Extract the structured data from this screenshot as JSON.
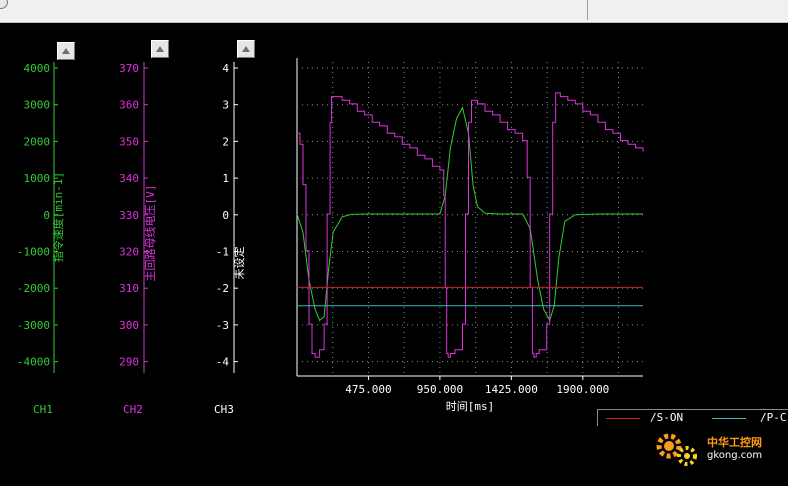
{
  "window": {
    "top_bar": ""
  },
  "axes": {
    "ch1": {
      "label": "指令速度[min-1]",
      "ticks": [
        "4000",
        "3000",
        "2000",
        "1000",
        "0",
        "-1000",
        "-2000",
        "-3000",
        "-4000"
      ],
      "color": "#33cc33",
      "channel": "CH1"
    },
    "ch2": {
      "label": "主回路母线电压[V]",
      "ticks": [
        "370",
        "360",
        "350",
        "340",
        "330",
        "320",
        "310",
        "300",
        "290"
      ],
      "color": "#dd33dd",
      "channel": "CH2"
    },
    "ch3": {
      "label": "未设定",
      "ticks": [
        "4",
        "3",
        "2",
        "1",
        "0",
        "-1",
        "-2",
        "-3",
        "-4"
      ],
      "color": "#ffffff",
      "channel": "CH3"
    }
  },
  "plot": {
    "xlabel": "时间[ms]",
    "xticks": [
      "475.000",
      "950.000",
      "1425.000",
      "1900.000"
    ]
  },
  "legend": {
    "items": [
      {
        "label": "/S-ON",
        "color": "#cc2222"
      },
      {
        "label": "/P-C",
        "color": "#33bbbb"
      }
    ]
  },
  "watermark": {
    "line1": "中华工控网",
    "line2": "gkong.com"
  },
  "chart_data": {
    "type": "line",
    "xlabel": "时间[ms]",
    "xlim": [
      0,
      2300
    ],
    "series": [
      {
        "name": "指令速度[min-1]",
        "color": "#33cc33",
        "x": [
          0,
          40,
          80,
          120,
          150,
          180,
          210,
          240,
          300,
          360,
          450,
          600,
          800,
          950,
          985,
          1020,
          1060,
          1100,
          1140,
          1170,
          1200,
          1250,
          1350,
          1500,
          1550,
          1600,
          1640,
          1680,
          1710,
          1740,
          1780,
          1850,
          2000,
          2300
        ],
        "y": [
          0,
          -500,
          -1800,
          -2600,
          -2900,
          -2800,
          -1500,
          -500,
          -80,
          -10,
          0,
          0,
          0,
          0,
          500,
          1800,
          2600,
          2900,
          2200,
          800,
          200,
          20,
          0,
          0,
          -400,
          -1800,
          -2600,
          -2900,
          -2500,
          -1200,
          -200,
          -20,
          0,
          0
        ]
      },
      {
        "name": "主回路母线电压[V]",
        "color": "#dd33dd",
        "x": [
          0,
          20,
          40,
          60,
          80,
          100,
          120,
          150,
          180,
          200,
          220,
          230,
          260,
          300,
          350,
          400,
          450,
          500,
          550,
          600,
          650,
          700,
          750,
          800,
          850,
          900,
          950,
          975,
          985,
          995,
          1005,
          1020,
          1050,
          1080,
          1100,
          1120,
          1140,
          1160,
          1180,
          1200,
          1250,
          1300,
          1350,
          1400,
          1450,
          1500,
          1530,
          1550,
          1565,
          1575,
          1590,
          1610,
          1640,
          1660,
          1680,
          1700,
          1720,
          1750,
          1800,
          1850,
          1900,
          1950,
          2000,
          2050,
          2100,
          2150,
          2200,
          2250,
          2300
        ],
        "y": [
          352,
          349,
          338,
          320,
          300,
          292,
          291,
          293,
          300,
          330,
          355,
          362,
          362,
          361,
          360,
          358,
          357,
          355,
          354,
          352,
          351,
          349,
          348,
          346,
          345,
          343,
          342,
          335,
          310,
          292,
          291,
          292,
          293,
          293,
          300,
          330,
          355,
          361,
          361,
          360,
          358,
          357,
          355,
          353,
          352,
          350,
          340,
          310,
          292,
          291,
          292,
          293,
          293,
          300,
          330,
          355,
          363,
          362,
          361,
          360,
          358,
          357,
          355,
          353,
          352,
          350,
          349,
          348,
          347
        ]
      },
      {
        "name": "/S-ON",
        "color": "#cc2222",
        "x": [
          0,
          2300
        ],
        "y": [
          -2,
          -2
        ]
      },
      {
        "name": "/P-C",
        "color": "#33bbbb",
        "x": [
          0,
          2300
        ],
        "y": [
          -2.5,
          -2.5
        ]
      }
    ]
  }
}
